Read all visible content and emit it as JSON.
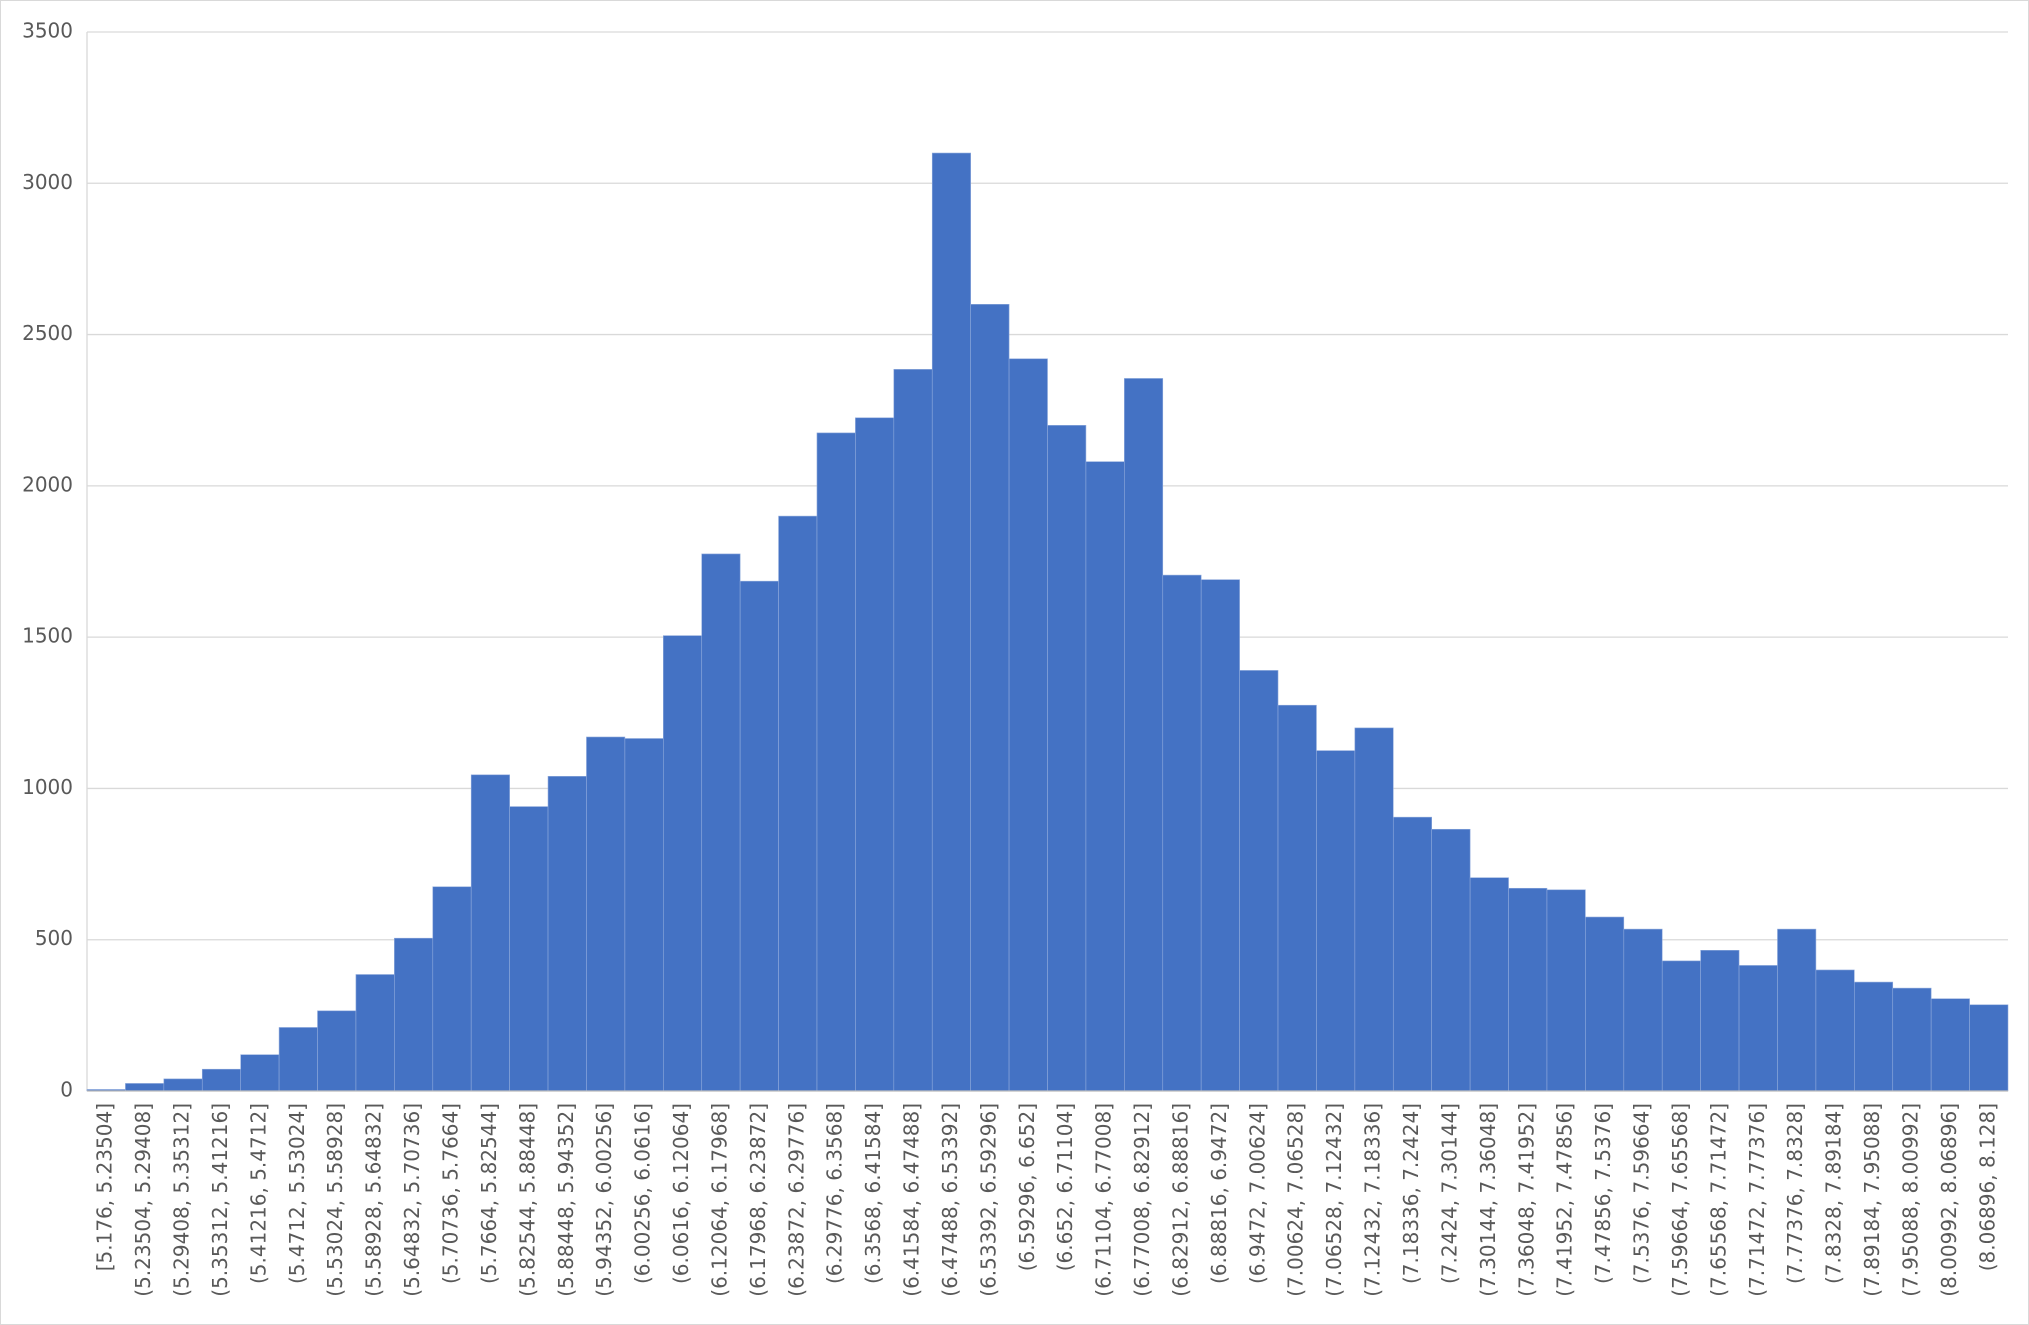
{
  "chart_data": {
    "type": "bar",
    "categories": [
      "[5.176, 5.23504]",
      "(5.23504, 5.29408]",
      "(5.29408, 5.35312]",
      "(5.35312, 5.41216]",
      "(5.41216, 5.4712]",
      "(5.4712, 5.53024]",
      "(5.53024, 5.58928]",
      "(5.58928, 5.64832]",
      "(5.64832, 5.70736]",
      "(5.70736, 5.7664]",
      "(5.7664, 5.82544]",
      "(5.82544, 5.88448]",
      "(5.88448, 5.94352]",
      "(5.94352, 6.00256]",
      "(6.00256, 6.0616]",
      "(6.0616, 6.12064]",
      "(6.12064, 6.17968]",
      "(6.17968, 6.23872]",
      "(6.23872, 6.29776]",
      "(6.29776, 6.3568]",
      "(6.3568, 6.41584]",
      "(6.41584, 6.47488]",
      "(6.47488, 6.53392]",
      "(6.53392, 6.59296]",
      "(6.59296, 6.652]",
      "(6.652, 6.71104]",
      "(6.71104, 6.77008]",
      "(6.77008, 6.82912]",
      "(6.82912, 6.88816]",
      "(6.88816, 6.9472]",
      "(6.9472, 7.00624]",
      "(7.00624, 7.06528]",
      "(7.06528, 7.12432]",
      "(7.12432, 7.18336]",
      "(7.18336, 7.2424]",
      "(7.2424, 7.30144]",
      "(7.30144, 7.36048]",
      "(7.36048, 7.41952]",
      "(7.41952, 7.47856]",
      "(7.47856, 7.5376]",
      "(7.5376, 7.59664]",
      "(7.59664, 7.65568]",
      "(7.65568, 7.71472]",
      "(7.71472, 7.77376]",
      "(7.77376, 7.8328]",
      "(7.8328, 7.89184]",
      "(7.89184, 7.95088]",
      "(7.95088, 8.00992]",
      "(8.00992, 8.06896]",
      "(8.06896, 8.128]"
    ],
    "values": [
      5,
      25,
      40,
      72,
      120,
      210,
      265,
      385,
      505,
      675,
      1045,
      940,
      1040,
      1170,
      1165,
      1505,
      1775,
      1685,
      1900,
      2175,
      2225,
      2385,
      3100,
      2600,
      2420,
      2200,
      2080,
      2355,
      1705,
      1690,
      1390,
      1275,
      1125,
      1200,
      905,
      865,
      705,
      670,
      665,
      575,
      535,
      430,
      465,
      415,
      535,
      400,
      360,
      340,
      305,
      285
    ],
    "color": "#4472c4",
    "ylim": [
      0,
      3500
    ],
    "yticks": [
      0,
      500,
      1000,
      1500,
      2000,
      2500,
      3000,
      3500
    ],
    "grid": true
  }
}
